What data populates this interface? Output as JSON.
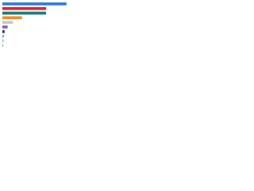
{
  "chart_data": {
    "type": "bar",
    "orientation": "horizontal",
    "values": [
      85,
      58,
      58,
      26,
      14,
      7,
      3,
      2,
      1.5,
      1
    ],
    "colors": [
      "#2f7ed8",
      "#d7263d",
      "#1a7f7a",
      "#f28c28",
      "#c8c8c8",
      "#8e5fc7",
      "#2b3a67",
      "#6fa8dc",
      "#9fb8a0",
      "#66c2a5"
    ],
    "xlim": [
      0,
      100
    ]
  }
}
